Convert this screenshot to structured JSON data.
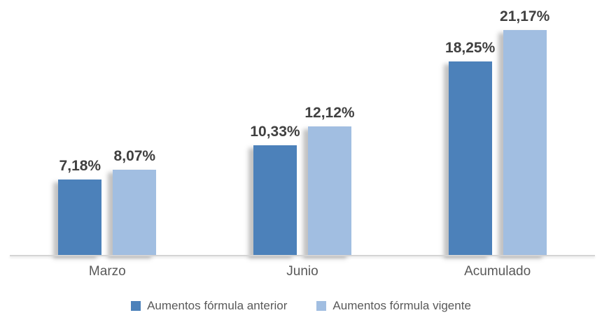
{
  "chart_data": {
    "type": "bar",
    "title": "",
    "xlabel": "",
    "ylabel": "",
    "categories": [
      "Marzo",
      "Junio",
      "Acumulado"
    ],
    "series": [
      {
        "name": "Aumentos fórmula anterior",
        "color": "#4C81BA",
        "values": [
          7.18,
          10.33,
          18.25
        ],
        "value_labels": [
          "7,18%",
          "10,33%",
          "18,25%"
        ]
      },
      {
        "name": "Aumentos fórmula vigente",
        "color": "#A1BEE1",
        "values": [
          8.07,
          12.12,
          21.17
        ],
        "value_labels": [
          "8,07%",
          "12,12%",
          "21,17%"
        ]
      }
    ],
    "ylim": [
      0,
      24
    ],
    "grid": false,
    "y_axis_visible": false,
    "legend_position": "bottom",
    "value_label_color": "#404040",
    "axis_text_color": "#595959",
    "axis_line_color": "#D4D4D4",
    "background": "#FFFFFF"
  }
}
